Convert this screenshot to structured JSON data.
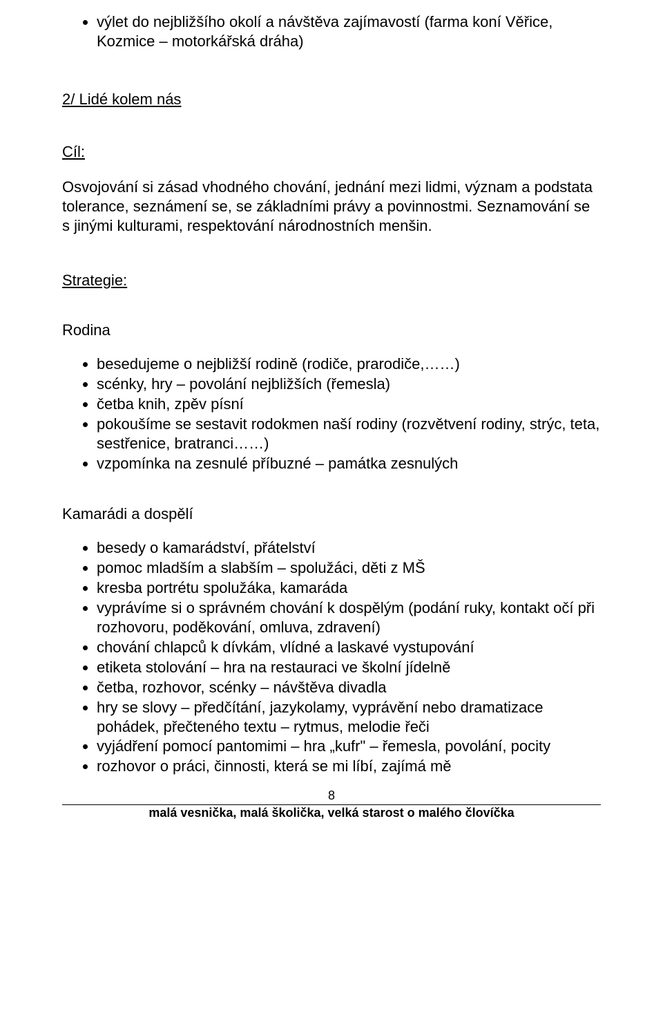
{
  "colors": {
    "background": "#ffffff",
    "text": "#000000",
    "rule": "#000000"
  },
  "typography": {
    "body_fontsize_pt": 16,
    "footer_fontsize_pt": 13,
    "font_family": "Arial"
  },
  "intro_bullets": [
    "výlet do nejbližšího okolí a návštěva zajímavostí (farma koní Věřice, Kozmice – motorkářská dráha)"
  ],
  "section_title": "2/ Lidé kolem nás",
  "cil": {
    "heading": "Cíl:",
    "body": "Osvojování si zásad vhodného chování, jednání mezi lidmi, význam a podstata tolerance, seznámení se, se základními právy a povinnostmi. Seznamování se s jinými kulturami, respektování národnostních menšin."
  },
  "strategie": {
    "heading": "Strategie:",
    "groups": [
      {
        "title": "Rodina",
        "items": [
          "besedujeme o nejbližší rodině (rodiče, prarodiče,……)",
          "scénky, hry – povolání nejbližších (řemesla)",
          "četba knih, zpěv písní",
          "pokoušíme se sestavit rodokmen naší rodiny (rozvětvení rodiny, strýc, teta, sestřenice, bratranci……)",
          "vzpomínka na zesnulé příbuzné – památka zesnulých"
        ]
      },
      {
        "title": "Kamarádi a dospělí",
        "items": [
          "besedy o kamarádství, přátelství",
          "pomoc mladším a slabším – spolužáci, děti z MŠ",
          "kresba portrétu spolužáka, kamaráda",
          "vyprávíme si o správném chování k dospělým (podání ruky, kontakt očí při rozhovoru, poděkování, omluva, zdravení)",
          "chování chlapců k dívkám, vlídné a laskavé vystupování",
          "etiketa stolování – hra na restauraci ve školní jídelně",
          "četba, rozhovor, scénky – návštěva divadla",
          "hry se slovy – předčítání, jazykolamy, vyprávění nebo dramatizace pohádek, přečteného textu – rytmus, melodie řeči",
          "vyjádření pomocí pantomimi – hra „kufr\" – řemesla, povolání, pocity",
          "rozhovor o práci, činnosti, která se mi líbí, zajímá mě"
        ]
      }
    ]
  },
  "page_number": "8",
  "footer": "malá vesnička, malá školička, velká starost o malého človíčka"
}
